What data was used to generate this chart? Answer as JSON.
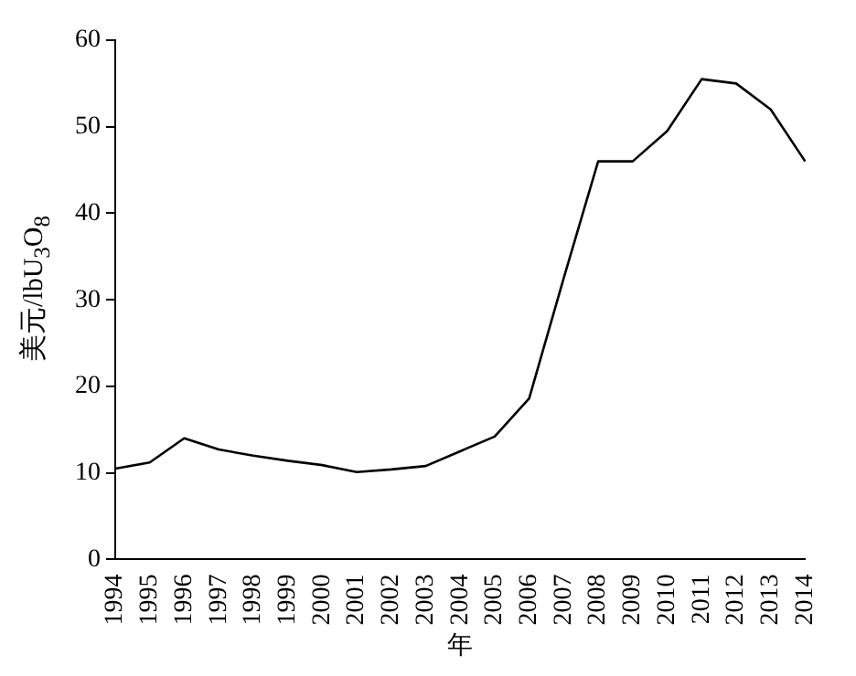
{
  "chart_data": {
    "type": "line",
    "xlabel": "年",
    "ylabel": "美元/lbU$_{3}$O$_{8}$",
    "categories": [
      "1994",
      "1995",
      "1996",
      "1997",
      "1998",
      "1999",
      "2000",
      "2001",
      "2002",
      "2003",
      "2004",
      "2005",
      "2006",
      "2007",
      "2008",
      "2009",
      "2010",
      "2011",
      "2012",
      "2013",
      "2014"
    ],
    "series": [
      {
        "color": "#000000",
        "values": [
          10.5,
          11.2,
          14,
          12.7,
          12,
          11.4,
          10.9,
          10.1,
          10.4,
          10.8,
          12.5,
          14.2,
          18.6,
          32.5,
          46,
          46,
          49.5,
          55.5,
          55,
          52,
          46
        ]
      }
    ],
    "ylim": [
      0,
      60
    ],
    "yticks": [
      0,
      10,
      20,
      30,
      40,
      50,
      60
    ],
    "grid": false,
    "legend": false,
    "marker": "none",
    "line_style": "solid"
  }
}
